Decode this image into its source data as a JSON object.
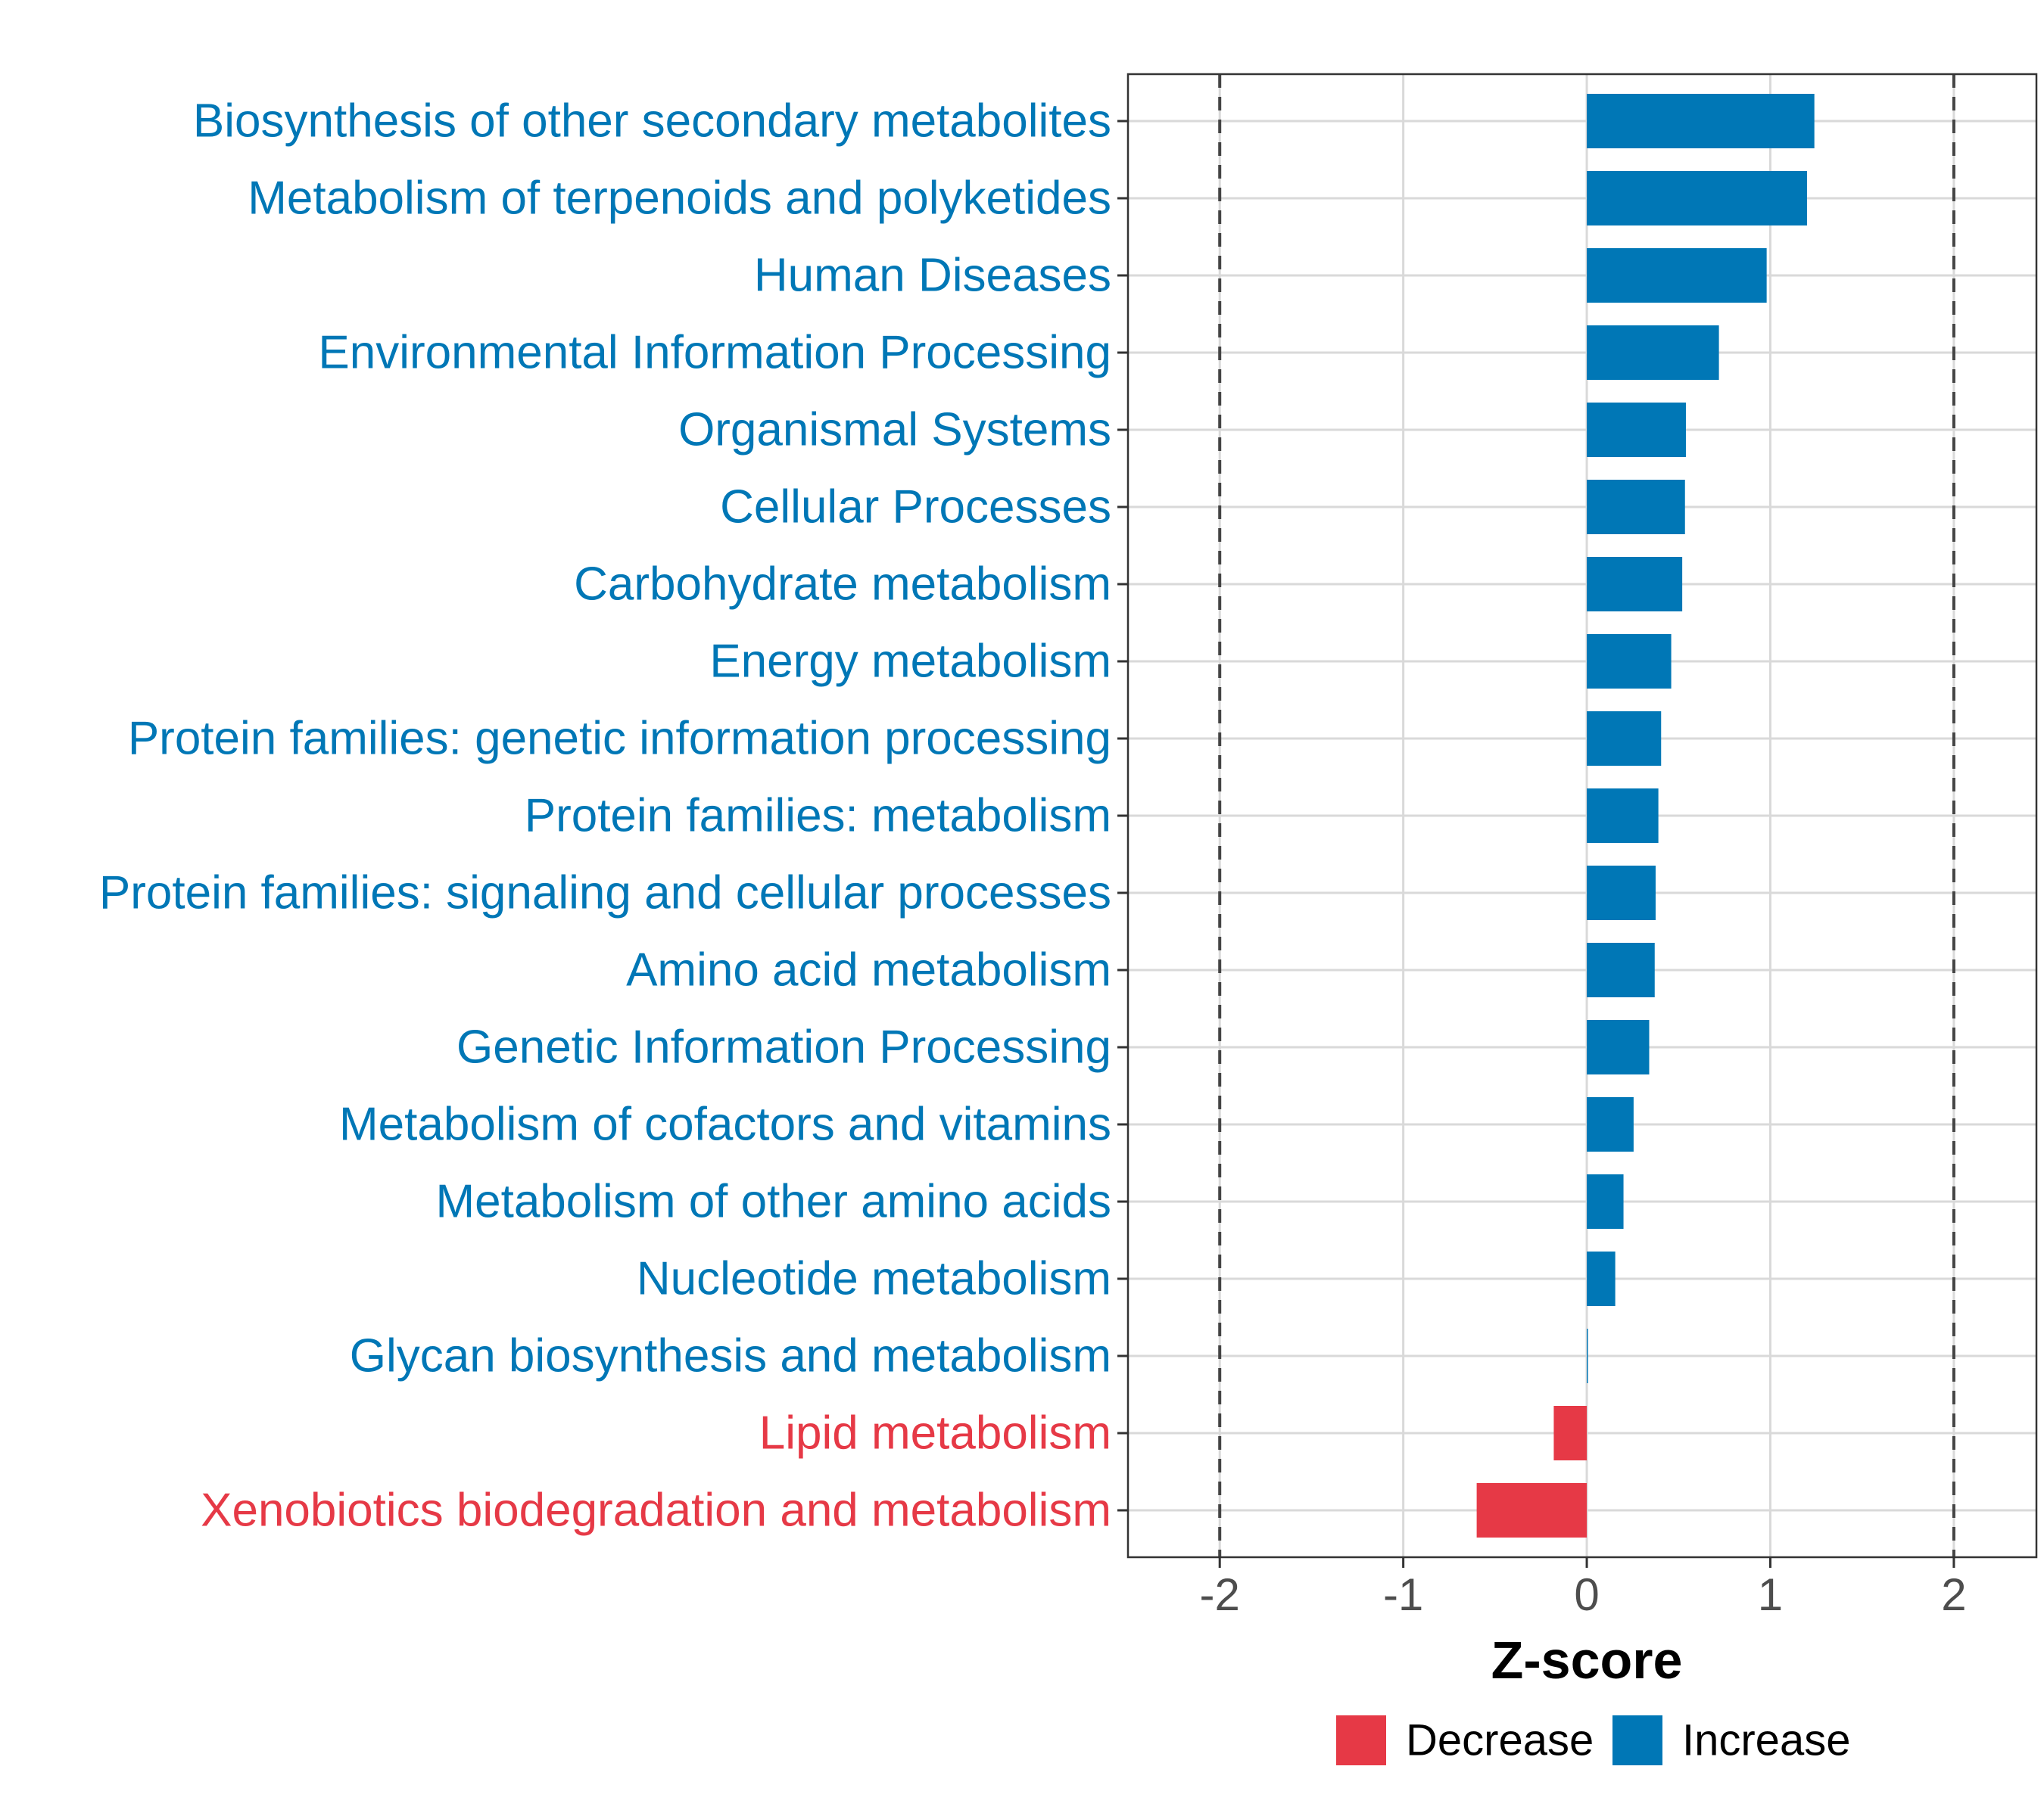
{
  "chart_data": {
    "type": "bar",
    "orientation": "horizontal",
    "title": "",
    "xlabel": "Z-score",
    "ylabel": "",
    "xlim": [
      -2.5,
      2.45
    ],
    "xticks": [
      -2,
      -1,
      0,
      1,
      2
    ],
    "xtick_labels": [
      "-2",
      "-1",
      "0",
      "1",
      "2"
    ],
    "reference_lines": [
      -2,
      2
    ],
    "grid": true,
    "legend_position": "bottom",
    "categories": [
      "Biosynthesis of other secondary metabolites",
      "Metabolism of terpenoids and polyketides",
      "Human Diseases",
      "Environmental Information Processing",
      "Organismal Systems",
      "Cellular Processes",
      "Carbohydrate metabolism",
      "Energy metabolism",
      "Protein families: genetic information processing",
      "Protein families: metabolism",
      "Protein families: signaling and cellular processes",
      "Amino acid metabolism",
      "Genetic Information Processing",
      "Metabolism of cofactors and vitamins",
      "Metabolism of other amino acids",
      "Nucleotide metabolism",
      "Glycan biosynthesis and metabolism",
      "Lipid metabolism",
      "Xenobiotics biodegradation and metabolism"
    ],
    "values": [
      1.24,
      1.2,
      0.98,
      0.72,
      0.54,
      0.535,
      0.52,
      0.46,
      0.405,
      0.39,
      0.375,
      0.37,
      0.34,
      0.255,
      0.2,
      0.155,
      0.005,
      -0.18,
      -0.6
    ],
    "groups": [
      "Increase",
      "Increase",
      "Increase",
      "Increase",
      "Increase",
      "Increase",
      "Increase",
      "Increase",
      "Increase",
      "Increase",
      "Increase",
      "Increase",
      "Increase",
      "Increase",
      "Increase",
      "Increase",
      "Increase",
      "Decrease",
      "Decrease"
    ],
    "legend": [
      {
        "name": "Decrease",
        "color": "#E63946"
      },
      {
        "name": "Increase",
        "color": "#0077B6"
      }
    ]
  }
}
